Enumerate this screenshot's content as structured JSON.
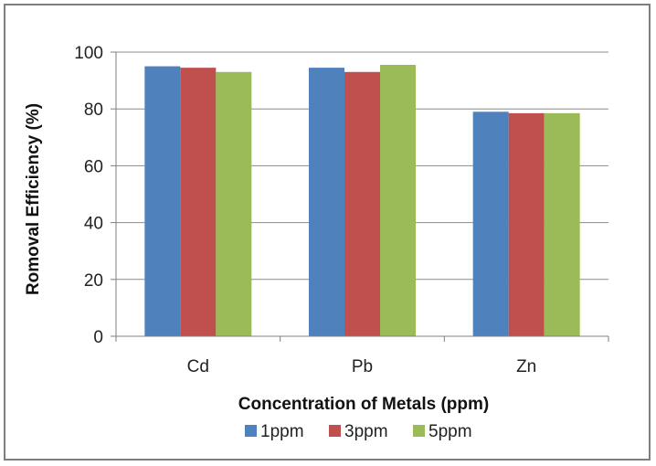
{
  "chart_data": {
    "type": "bar",
    "title": "",
    "xlabel": "Concentration of Metals (ppm)",
    "ylabel": "Romoval Efficiency (%)",
    "categories": [
      "Cd",
      "Pb",
      "Zn"
    ],
    "series": [
      {
        "name": "1ppm",
        "values": [
          95,
          94.5,
          79
        ],
        "color": "#4f81bd"
      },
      {
        "name": "3ppm",
        "values": [
          94.5,
          93,
          78.5
        ],
        "color": "#c0504d"
      },
      {
        "name": "5ppm",
        "values": [
          93,
          95.5,
          78.5
        ],
        "color": "#9bbb59"
      }
    ],
    "ylim": [
      0,
      100
    ],
    "yticks": [
      0,
      20,
      40,
      60,
      80,
      100
    ],
    "grid": true,
    "legend_position": "bottom"
  }
}
